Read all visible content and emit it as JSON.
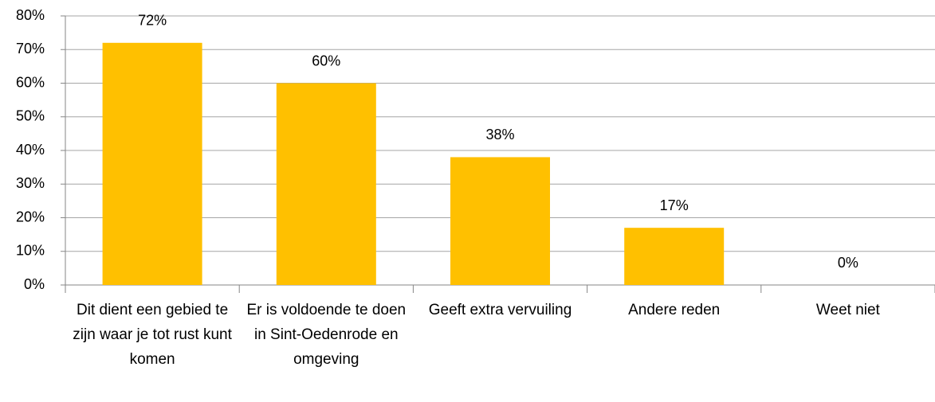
{
  "chart_data": {
    "type": "bar",
    "categories": [
      "Dit dient een gebied te zijn waar je tot rust kunt komen",
      "Er is voldoende te doen in Sint-Oedenrode en omgeving",
      "Geeft extra vervuiling",
      "Andere reden",
      "Weet niet"
    ],
    "values": [
      72,
      60,
      38,
      17,
      0
    ],
    "value_labels": [
      "72%",
      "60%",
      "38%",
      "17%",
      "0%"
    ],
    "color": "#ffc000",
    "ylim": [
      0,
      80
    ],
    "yticks": [
      {
        "value": 0,
        "label": "0%"
      },
      {
        "value": 10,
        "label": "10%"
      },
      {
        "value": 20,
        "label": "20%"
      },
      {
        "value": 30,
        "label": "30%"
      },
      {
        "value": 40,
        "label": "40%"
      },
      {
        "value": 50,
        "label": "50%"
      },
      {
        "value": 60,
        "label": "60%"
      },
      {
        "value": 70,
        "label": "70%"
      },
      {
        "value": 80,
        "label": "80%"
      }
    ],
    "grid": true
  }
}
